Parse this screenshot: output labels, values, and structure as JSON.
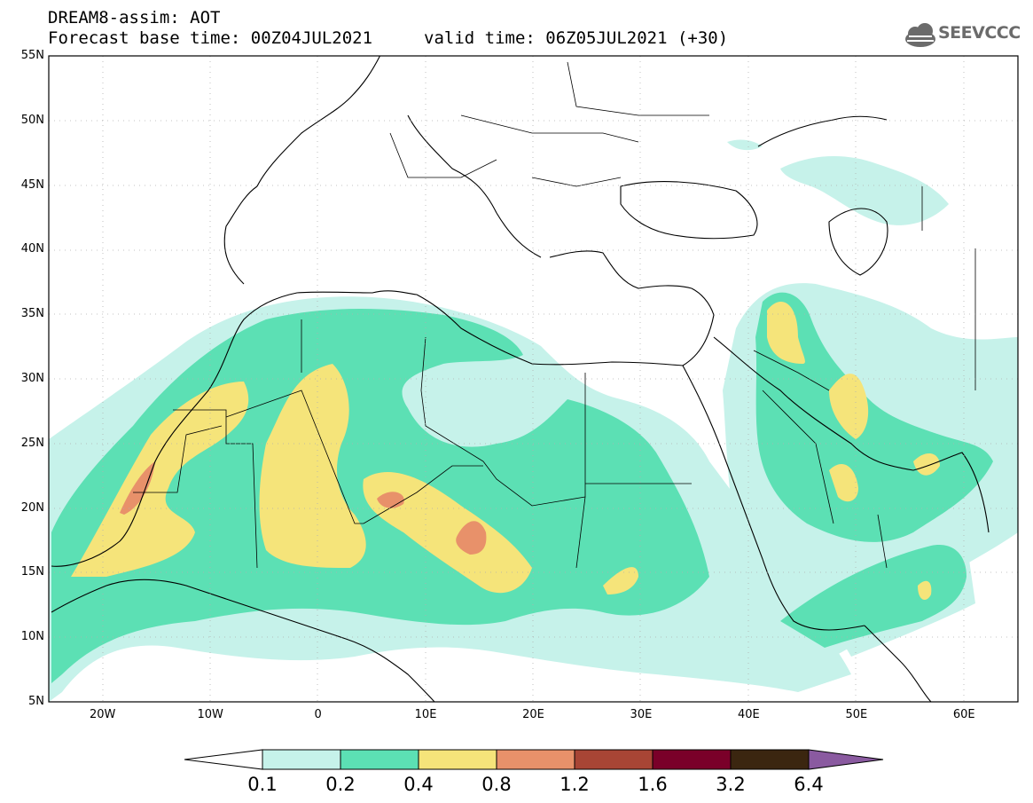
{
  "title": {
    "line1": "DREAM8-assim: AOT",
    "line2": "Forecast base time: 00Z04JUL2021",
    "valid": "valid time: 06Z05JUL2021 (+30)"
  },
  "logo": {
    "text": "SEEVCCC",
    "icon": "cloud-logo-icon",
    "color": "#6b6b6b"
  },
  "map": {
    "lon_range": [
      -25,
      65
    ],
    "lat_range": [
      5,
      55
    ],
    "lon_ticks": [
      "20W",
      "10W",
      "0",
      "10E",
      "20E",
      "30E",
      "40E",
      "50E",
      "60E"
    ],
    "lat_ticks": [
      "55N",
      "50N",
      "45N",
      "40N",
      "35N",
      "30N",
      "25N",
      "20N",
      "15N",
      "10N",
      "5N"
    ]
  },
  "colorbar": {
    "labels": [
      "0.1",
      "0.2",
      "0.4",
      "0.8",
      "1.2",
      "1.6",
      "3.2",
      "6.4"
    ],
    "colors": [
      "#ffffff",
      "#c6f2ea",
      "#5ce0b4",
      "#f5e47a",
      "#e8916a",
      "#a84535",
      "#7a0029",
      "#3b2610",
      "#8a5aa0"
    ]
  }
}
